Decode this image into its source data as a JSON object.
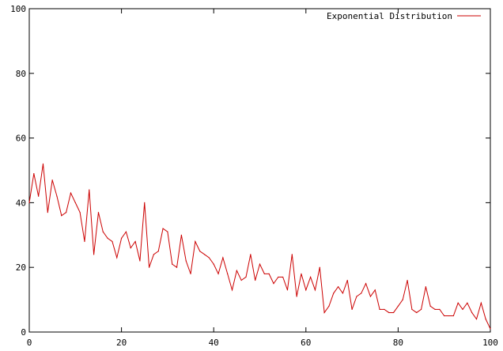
{
  "chart_data": {
    "type": "line",
    "title": "",
    "xlabel": "",
    "ylabel": "",
    "xlim": [
      0,
      100
    ],
    "ylim": [
      0,
      100
    ],
    "x_ticks": [
      0,
      20,
      40,
      60,
      80,
      100
    ],
    "y_ticks": [
      0,
      20,
      40,
      60,
      80,
      100
    ],
    "grid": false,
    "legend_position": "top-right",
    "series": [
      {
        "name": "Exponential Distribution",
        "color": "#cc0000",
        "x": [
          0,
          1,
          2,
          3,
          4,
          5,
          6,
          7,
          8,
          9,
          10,
          11,
          12,
          13,
          14,
          15,
          16,
          17,
          18,
          19,
          20,
          21,
          22,
          23,
          24,
          25,
          26,
          27,
          28,
          29,
          30,
          31,
          32,
          33,
          34,
          35,
          36,
          37,
          38,
          39,
          40,
          41,
          42,
          43,
          44,
          45,
          46,
          47,
          48,
          49,
          50,
          51,
          52,
          53,
          54,
          55,
          56,
          57,
          58,
          59,
          60,
          61,
          62,
          63,
          64,
          65,
          66,
          67,
          68,
          69,
          70,
          71,
          72,
          73,
          74,
          75,
          76,
          77,
          78,
          79,
          80,
          81,
          82,
          83,
          84,
          85,
          86,
          87,
          88,
          89,
          90,
          91,
          92,
          93,
          94,
          95,
          96,
          97,
          98,
          99,
          100
        ],
        "y": [
          40,
          49,
          42,
          52,
          37,
          47,
          42,
          36,
          37,
          43,
          40,
          37,
          28,
          44,
          24,
          37,
          31,
          29,
          28,
          23,
          29,
          31,
          26,
          28,
          22,
          40,
          20,
          24,
          25,
          32,
          31,
          21,
          20,
          30,
          22,
          18,
          28,
          25,
          24,
          23,
          21,
          18,
          23,
          18,
          13,
          19,
          16,
          17,
          24,
          16,
          21,
          18,
          18,
          15,
          17,
          17,
          13,
          24,
          11,
          18,
          13,
          17,
          13,
          20,
          6,
          8,
          12,
          14,
          12,
          16,
          7,
          11,
          12,
          15,
          11,
          13,
          7,
          7,
          6,
          6,
          8,
          10,
          16,
          7,
          6,
          7,
          14,
          8,
          7,
          7,
          5,
          5,
          5,
          9,
          7,
          9,
          6,
          4,
          9,
          4,
          1
        ]
      }
    ]
  }
}
